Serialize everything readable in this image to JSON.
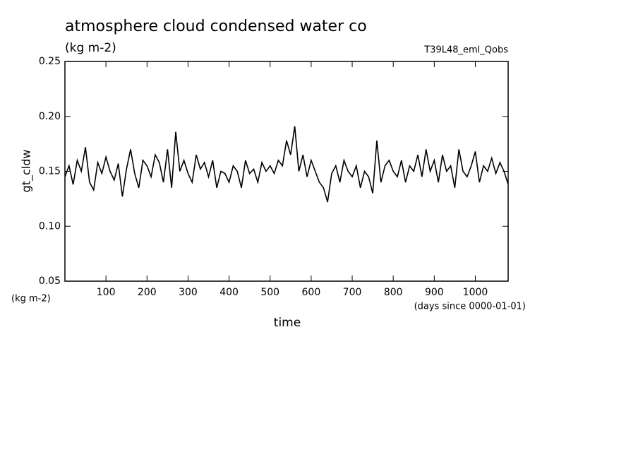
{
  "chart_data": {
    "type": "line",
    "title": "atmosphere cloud condensed water co",
    "subtitle": "(kg m-2)",
    "annotation": "T39L48_eml_Qobs",
    "y_label": "gt_cldw",
    "y_units": "(kg m-2)",
    "x_label": "time",
    "x_units": "(days since 0000-01-01)",
    "xlim": [
      0,
      1080
    ],
    "ylim": [
      0.05,
      0.25
    ],
    "xticks": [
      100,
      200,
      300,
      400,
      500,
      600,
      700,
      800,
      900,
      1000
    ],
    "yticks": [
      0.05,
      {
        "value": 0.1,
        "label": "0.10"
      },
      0.15,
      {
        "value": 0.2,
        "label": "0.20"
      },
      0.25
    ],
    "color": "#000000",
    "x": [
      0,
      10,
      20,
      30,
      40,
      50,
      60,
      70,
      80,
      90,
      100,
      110,
      120,
      130,
      140,
      150,
      160,
      170,
      180,
      190,
      200,
      210,
      220,
      230,
      240,
      250,
      260,
      270,
      280,
      290,
      300,
      310,
      320,
      330,
      340,
      350,
      360,
      370,
      380,
      390,
      400,
      410,
      420,
      430,
      440,
      450,
      460,
      470,
      480,
      490,
      500,
      510,
      520,
      530,
      540,
      550,
      560,
      570,
      580,
      590,
      600,
      610,
      620,
      630,
      640,
      650,
      660,
      670,
      680,
      690,
      700,
      710,
      720,
      730,
      740,
      750,
      760,
      770,
      780,
      790,
      800,
      810,
      820,
      830,
      840,
      850,
      860,
      870,
      880,
      890,
      900,
      910,
      920,
      930,
      940,
      950,
      960,
      970,
      980,
      990,
      1000,
      1010,
      1020,
      1030,
      1040,
      1050,
      1060,
      1070,
      1080
    ],
    "values": [
      0.145,
      0.155,
      0.138,
      0.16,
      0.15,
      0.172,
      0.14,
      0.133,
      0.158,
      0.148,
      0.163,
      0.15,
      0.142,
      0.157,
      0.127,
      0.152,
      0.17,
      0.148,
      0.135,
      0.16,
      0.155,
      0.145,
      0.165,
      0.158,
      0.14,
      0.17,
      0.135,
      0.186,
      0.15,
      0.16,
      0.148,
      0.14,
      0.165,
      0.152,
      0.158,
      0.145,
      0.16,
      0.135,
      0.15,
      0.148,
      0.14,
      0.155,
      0.15,
      0.135,
      0.16,
      0.148,
      0.152,
      0.14,
      0.158,
      0.15,
      0.155,
      0.148,
      0.16,
      0.155,
      0.178,
      0.165,
      0.191,
      0.15,
      0.165,
      0.145,
      0.16,
      0.15,
      0.14,
      0.135,
      0.122,
      0.148,
      0.155,
      0.14,
      0.16,
      0.15,
      0.145,
      0.155,
      0.135,
      0.15,
      0.145,
      0.13,
      0.178,
      0.14,
      0.155,
      0.16,
      0.15,
      0.145,
      0.16,
      0.14,
      0.155,
      0.15,
      0.165,
      0.145,
      0.17,
      0.15,
      0.16,
      0.14,
      0.165,
      0.15,
      0.155,
      0.135,
      0.17,
      0.15,
      0.145,
      0.155,
      0.168,
      0.14,
      0.155,
      0.15,
      0.162,
      0.148,
      0.158,
      0.15,
      0.138
    ]
  }
}
